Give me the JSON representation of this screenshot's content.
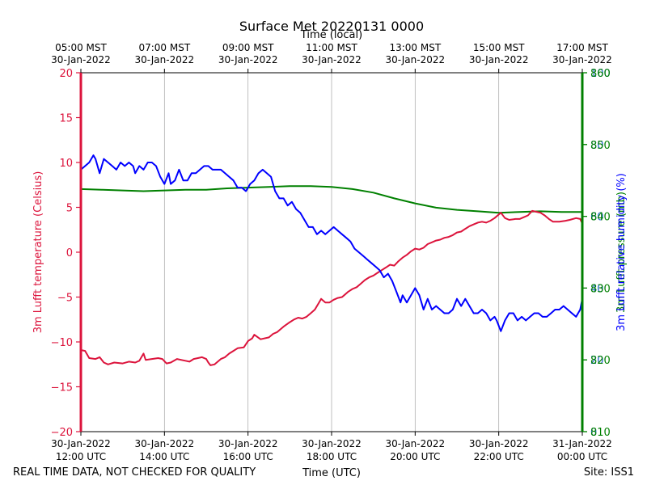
{
  "chart_data": {
    "type": "line",
    "title": "Surface Met 20220131 0000",
    "top_axis_label": "Time (local)",
    "xlabel": "Time (UTC)",
    "left_label": "3m Lufft temperature (Celsius)",
    "right_label_pressure": "3m Lufft pressure (mb)",
    "right_label_humidity": "3m Lufft relative humidity (%)",
    "footer_left": "REAL TIME DATA, NOT CHECKED FOR QUALITY",
    "footer_right": "Site: ISS1",
    "x_range_hours": [
      12,
      24
    ],
    "bottom_ticks": [
      {
        "hour": 12,
        "line1": "30-Jan-2022",
        "line2": "12:00 UTC"
      },
      {
        "hour": 14,
        "line1": "30-Jan-2022",
        "line2": "14:00 UTC"
      },
      {
        "hour": 16,
        "line1": "30-Jan-2022",
        "line2": "16:00 UTC"
      },
      {
        "hour": 18,
        "line1": "30-Jan-2022",
        "line2": "18:00 UTC"
      },
      {
        "hour": 20,
        "line1": "30-Jan-2022",
        "line2": "20:00 UTC"
      },
      {
        "hour": 22,
        "line1": "30-Jan-2022",
        "line2": "22:00 UTC"
      },
      {
        "hour": 24,
        "line1": "31-Jan-2022",
        "line2": "00:00 UTC"
      }
    ],
    "top_ticks": [
      {
        "hour": 12,
        "line1": "05:00 MST",
        "line2": "30-Jan-2022"
      },
      {
        "hour": 14,
        "line1": "07:00 MST",
        "line2": "30-Jan-2022"
      },
      {
        "hour": 16,
        "line1": "09:00 MST",
        "line2": "30-Jan-2022"
      },
      {
        "hour": 18,
        "line1": "11:00 MST",
        "line2": "30-Jan-2022"
      },
      {
        "hour": 20,
        "line1": "13:00 MST",
        "line2": "30-Jan-2022"
      },
      {
        "hour": 22,
        "line1": "15:00 MST",
        "line2": "30-Jan-2022"
      },
      {
        "hour": 24,
        "line1": "17:00 MST",
        "line2": "30-Jan-2022"
      }
    ],
    "left_axis": {
      "range": [
        -20,
        20
      ],
      "ticks": [
        "−20",
        "−15",
        "−10",
        "−5",
        "0",
        "5",
        "10",
        "15",
        "20"
      ]
    },
    "pressure_axis": {
      "range": [
        810,
        860
      ],
      "ticks": [
        "810",
        "820",
        "830",
        "840",
        "850",
        "860"
      ]
    },
    "humidity_axis": {
      "range": [
        0,
        100
      ],
      "ticks": [
        "0",
        "20",
        "40",
        "60",
        "80",
        "100"
      ]
    },
    "series": [
      {
        "name": "temperature",
        "axis": "left",
        "color": "#dc143c",
        "points": [
          [
            12.0,
            -10.9
          ],
          [
            12.1,
            -11.0
          ],
          [
            12.2,
            -11.8
          ],
          [
            12.35,
            -11.9
          ],
          [
            12.45,
            -11.7
          ],
          [
            12.55,
            -12.3
          ],
          [
            12.65,
            -12.5
          ],
          [
            12.8,
            -12.3
          ],
          [
            13.0,
            -12.4
          ],
          [
            13.15,
            -12.2
          ],
          [
            13.3,
            -12.3
          ],
          [
            13.4,
            -12.1
          ],
          [
            13.5,
            -11.3
          ],
          [
            13.55,
            -12.0
          ],
          [
            13.7,
            -11.9
          ],
          [
            13.85,
            -11.8
          ],
          [
            13.95,
            -11.9
          ],
          [
            14.05,
            -12.4
          ],
          [
            14.15,
            -12.3
          ],
          [
            14.3,
            -11.9
          ],
          [
            14.5,
            -12.1
          ],
          [
            14.6,
            -12.2
          ],
          [
            14.7,
            -11.9
          ],
          [
            14.8,
            -11.8
          ],
          [
            14.9,
            -11.7
          ],
          [
            15.0,
            -11.9
          ],
          [
            15.05,
            -12.3
          ],
          [
            15.1,
            -12.6
          ],
          [
            15.2,
            -12.5
          ],
          [
            15.35,
            -11.9
          ],
          [
            15.45,
            -11.7
          ],
          [
            15.55,
            -11.3
          ],
          [
            15.65,
            -11.0
          ],
          [
            15.75,
            -10.7
          ],
          [
            15.9,
            -10.6
          ],
          [
            16.0,
            -9.9
          ],
          [
            16.1,
            -9.6
          ],
          [
            16.15,
            -9.2
          ],
          [
            16.3,
            -9.7
          ],
          [
            16.5,
            -9.5
          ],
          [
            16.6,
            -9.1
          ],
          [
            16.7,
            -8.9
          ],
          [
            16.85,
            -8.3
          ],
          [
            17.0,
            -7.8
          ],
          [
            17.1,
            -7.5
          ],
          [
            17.2,
            -7.3
          ],
          [
            17.3,
            -7.4
          ],
          [
            17.4,
            -7.2
          ],
          [
            17.5,
            -6.8
          ],
          [
            17.6,
            -6.4
          ],
          [
            17.7,
            -5.6
          ],
          [
            17.75,
            -5.2
          ],
          [
            17.85,
            -5.6
          ],
          [
            17.95,
            -5.6
          ],
          [
            18.05,
            -5.3
          ],
          [
            18.15,
            -5.1
          ],
          [
            18.25,
            -5.0
          ],
          [
            18.3,
            -4.8
          ],
          [
            18.4,
            -4.4
          ],
          [
            18.5,
            -4.1
          ],
          [
            18.6,
            -3.9
          ],
          [
            18.7,
            -3.5
          ],
          [
            18.8,
            -3.1
          ],
          [
            18.9,
            -2.8
          ],
          [
            19.0,
            -2.6
          ],
          [
            19.1,
            -2.3
          ],
          [
            19.2,
            -2.0
          ],
          [
            19.3,
            -1.7
          ],
          [
            19.4,
            -1.4
          ],
          [
            19.5,
            -1.5
          ],
          [
            19.6,
            -1.0
          ],
          [
            19.7,
            -0.6
          ],
          [
            19.8,
            -0.3
          ],
          [
            19.9,
            0.1
          ],
          [
            20.0,
            0.4
          ],
          [
            20.1,
            0.3
          ],
          [
            20.2,
            0.5
          ],
          [
            20.3,
            0.9
          ],
          [
            20.4,
            1.1
          ],
          [
            20.5,
            1.3
          ],
          [
            20.6,
            1.4
          ],
          [
            20.7,
            1.6
          ],
          [
            20.8,
            1.7
          ],
          [
            20.9,
            1.9
          ],
          [
            21.0,
            2.2
          ],
          [
            21.1,
            2.3
          ],
          [
            21.2,
            2.6
          ],
          [
            21.3,
            2.9
          ],
          [
            21.4,
            3.1
          ],
          [
            21.5,
            3.3
          ],
          [
            21.6,
            3.4
          ],
          [
            21.7,
            3.3
          ],
          [
            21.8,
            3.5
          ],
          [
            21.9,
            3.8
          ],
          [
            22.0,
            4.2
          ],
          [
            22.05,
            4.4
          ],
          [
            22.15,
            3.8
          ],
          [
            22.25,
            3.6
          ],
          [
            22.4,
            3.7
          ],
          [
            22.5,
            3.7
          ],
          [
            22.6,
            3.9
          ],
          [
            22.7,
            4.1
          ],
          [
            22.8,
            4.6
          ],
          [
            22.9,
            4.5
          ],
          [
            23.0,
            4.4
          ],
          [
            23.1,
            4.1
          ],
          [
            23.2,
            3.7
          ],
          [
            23.3,
            3.4
          ],
          [
            23.45,
            3.4
          ],
          [
            23.6,
            3.5
          ],
          [
            23.7,
            3.6
          ],
          [
            23.85,
            3.8
          ],
          [
            23.95,
            3.7
          ],
          [
            24.0,
            3.2
          ]
        ]
      },
      {
        "name": "pressure",
        "axis": "pressure",
        "color": "#008000",
        "points": [
          [
            12.0,
            843.8
          ],
          [
            12.5,
            843.7
          ],
          [
            13.0,
            843.6
          ],
          [
            13.5,
            843.5
          ],
          [
            14.0,
            843.6
          ],
          [
            14.5,
            843.7
          ],
          [
            15.0,
            843.7
          ],
          [
            15.5,
            843.9
          ],
          [
            16.0,
            844.0
          ],
          [
            16.5,
            844.1
          ],
          [
            17.0,
            844.2
          ],
          [
            17.5,
            844.2
          ],
          [
            18.0,
            844.1
          ],
          [
            18.5,
            843.8
          ],
          [
            19.0,
            843.3
          ],
          [
            19.5,
            842.5
          ],
          [
            20.0,
            841.8
          ],
          [
            20.5,
            841.2
          ],
          [
            21.0,
            840.9
          ],
          [
            21.5,
            840.7
          ],
          [
            22.0,
            840.5
          ],
          [
            22.5,
            840.6
          ],
          [
            23.0,
            840.7
          ],
          [
            23.5,
            840.6
          ],
          [
            24.0,
            840.6
          ]
        ]
      },
      {
        "name": "humidity",
        "axis": "humidity",
        "color": "#0000ff",
        "points": [
          [
            12.0,
            73.0
          ],
          [
            12.1,
            74.0
          ],
          [
            12.2,
            75.0
          ],
          [
            12.3,
            77.0
          ],
          [
            12.35,
            76.0
          ],
          [
            12.45,
            72.0
          ],
          [
            12.55,
            76.0
          ],
          [
            12.65,
            75.0
          ],
          [
            12.75,
            74.0
          ],
          [
            12.85,
            73.0
          ],
          [
            12.95,
            75.0
          ],
          [
            13.05,
            74.0
          ],
          [
            13.15,
            75.0
          ],
          [
            13.25,
            74.0
          ],
          [
            13.3,
            72.0
          ],
          [
            13.4,
            74.0
          ],
          [
            13.5,
            73.0
          ],
          [
            13.6,
            75.0
          ],
          [
            13.7,
            75.0
          ],
          [
            13.8,
            74.0
          ],
          [
            13.9,
            71.0
          ],
          [
            14.0,
            69.0
          ],
          [
            14.1,
            72.0
          ],
          [
            14.15,
            69.0
          ],
          [
            14.25,
            70.0
          ],
          [
            14.35,
            73.0
          ],
          [
            14.45,
            70.0
          ],
          [
            14.55,
            70.0
          ],
          [
            14.65,
            72.0
          ],
          [
            14.75,
            72.0
          ],
          [
            14.85,
            73.0
          ],
          [
            14.95,
            74.0
          ],
          [
            15.05,
            74.0
          ],
          [
            15.15,
            73.0
          ],
          [
            15.25,
            73.0
          ],
          [
            15.35,
            73.0
          ],
          [
            15.45,
            72.0
          ],
          [
            15.55,
            71.0
          ],
          [
            15.65,
            70.0
          ],
          [
            15.75,
            68.0
          ],
          [
            15.85,
            68.0
          ],
          [
            15.95,
            67.0
          ],
          [
            16.05,
            69.0
          ],
          [
            16.15,
            70.0
          ],
          [
            16.25,
            72.0
          ],
          [
            16.35,
            73.0
          ],
          [
            16.45,
            72.0
          ],
          [
            16.55,
            71.0
          ],
          [
            16.65,
            67.0
          ],
          [
            16.75,
            65.0
          ],
          [
            16.85,
            65.0
          ],
          [
            16.95,
            63.0
          ],
          [
            17.05,
            64.0
          ],
          [
            17.15,
            62.0
          ],
          [
            17.25,
            61.0
          ],
          [
            17.35,
            59.0
          ],
          [
            17.45,
            57.0
          ],
          [
            17.55,
            57.0
          ],
          [
            17.65,
            55.0
          ],
          [
            17.75,
            56.0
          ],
          [
            17.85,
            55.0
          ],
          [
            17.95,
            56.0
          ],
          [
            18.05,
            57.0
          ],
          [
            18.15,
            56.0
          ],
          [
            18.25,
            55.0
          ],
          [
            18.35,
            54.0
          ],
          [
            18.45,
            53.0
          ],
          [
            18.55,
            51.0
          ],
          [
            18.65,
            50.0
          ],
          [
            18.75,
            49.0
          ],
          [
            18.85,
            48.0
          ],
          [
            18.95,
            47.0
          ],
          [
            19.05,
            46.0
          ],
          [
            19.15,
            45.0
          ],
          [
            19.25,
            43.0
          ],
          [
            19.35,
            44.0
          ],
          [
            19.45,
            42.0
          ],
          [
            19.55,
            39.0
          ],
          [
            19.65,
            36.0
          ],
          [
            19.7,
            38.0
          ],
          [
            19.8,
            36.0
          ],
          [
            19.9,
            38.0
          ],
          [
            20.0,
            40.0
          ],
          [
            20.1,
            38.0
          ],
          [
            20.2,
            34.0
          ],
          [
            20.3,
            37.0
          ],
          [
            20.4,
            34.0
          ],
          [
            20.5,
            35.0
          ],
          [
            20.6,
            34.0
          ],
          [
            20.7,
            33.0
          ],
          [
            20.8,
            33.0
          ],
          [
            20.9,
            34.0
          ],
          [
            21.0,
            37.0
          ],
          [
            21.1,
            35.0
          ],
          [
            21.2,
            37.0
          ],
          [
            21.3,
            35.0
          ],
          [
            21.4,
            33.0
          ],
          [
            21.5,
            33.0
          ],
          [
            21.6,
            34.0
          ],
          [
            21.7,
            33.0
          ],
          [
            21.8,
            31.0
          ],
          [
            21.9,
            32.0
          ],
          [
            21.95,
            31.0
          ],
          [
            22.05,
            28.0
          ],
          [
            22.15,
            31.0
          ],
          [
            22.25,
            33.0
          ],
          [
            22.35,
            33.0
          ],
          [
            22.45,
            31.0
          ],
          [
            22.55,
            32.0
          ],
          [
            22.65,
            31.0
          ],
          [
            22.75,
            32.0
          ],
          [
            22.85,
            33.0
          ],
          [
            22.95,
            33.0
          ],
          [
            23.05,
            32.0
          ],
          [
            23.15,
            32.0
          ],
          [
            23.25,
            33.0
          ],
          [
            23.35,
            34.0
          ],
          [
            23.45,
            34.0
          ],
          [
            23.55,
            35.0
          ],
          [
            23.65,
            34.0
          ],
          [
            23.75,
            33.0
          ],
          [
            23.85,
            32.0
          ],
          [
            23.95,
            34.0
          ],
          [
            24.0,
            37.0
          ]
        ]
      }
    ]
  }
}
